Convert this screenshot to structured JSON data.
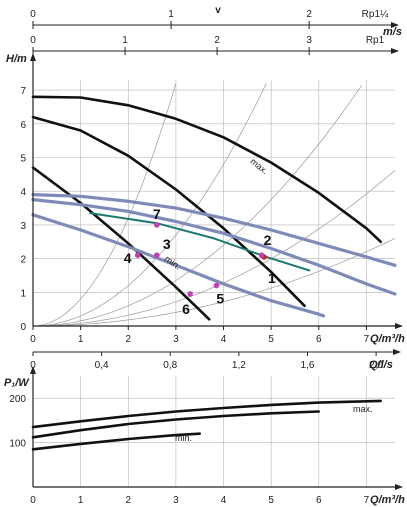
{
  "chart_data": [
    {
      "type": "line",
      "title": "",
      "scales": [
        {
          "label": "v",
          "unit": "m/s",
          "ticks": [
            "0",
            "1",
            "2"
          ],
          "values": [
            0,
            1,
            2
          ],
          "max": 2.6,
          "pipe": "Rp1¼"
        },
        {
          "label": "",
          "unit": "m/s",
          "ticks": [
            "0",
            "1",
            "2",
            "3"
          ],
          "values": [
            0,
            1,
            2,
            3
          ],
          "max": 3.9,
          "pipe": "Rp1"
        }
      ]
    },
    {
      "type": "line",
      "ylabel": "H/m",
      "xlabel": "Q/m³/h",
      "xlim": [
        0,
        7.6
      ],
      "ylim": [
        0,
        7.3
      ],
      "xticks": [
        "0",
        "1",
        "2",
        "3",
        "4",
        "5",
        "6",
        "7"
      ],
      "yticks": [
        "0",
        "1",
        "2",
        "3",
        "4",
        "5",
        "6",
        "7"
      ],
      "curve_labels": {
        "max": "max.",
        "min": "min."
      },
      "series": [
        {
          "id": "const-max",
          "x": [
            0,
            1,
            2,
            3,
            4,
            5,
            6,
            7,
            7.3
          ],
          "y": [
            6.8,
            6.78,
            6.55,
            6.15,
            5.6,
            4.85,
            3.95,
            2.9,
            2.5
          ],
          "color": "#111111"
        },
        {
          "id": "const-2",
          "x": [
            0,
            1,
            2,
            3,
            4,
            5,
            5.7
          ],
          "y": [
            6.2,
            5.8,
            5.05,
            4.05,
            2.9,
            1.6,
            0.6
          ],
          "color": "#111111"
        },
        {
          "id": "const-min",
          "x": [
            0,
            1,
            2,
            3,
            3.7
          ],
          "y": [
            4.7,
            3.65,
            2.45,
            1.15,
            0.2
          ],
          "color": "#111111"
        },
        {
          "id": "var-max",
          "x": [
            0,
            1,
            2,
            3,
            4,
            5,
            6,
            7,
            7.6
          ],
          "y": [
            3.9,
            3.85,
            3.7,
            3.5,
            3.2,
            2.85,
            2.45,
            2.05,
            1.8
          ],
          "color": "#7f8ab8"
        },
        {
          "id": "var-mid",
          "x": [
            0,
            1,
            2,
            3,
            4,
            5,
            6,
            7,
            7.6
          ],
          "y": [
            3.75,
            3.6,
            3.4,
            3.1,
            2.75,
            2.3,
            1.8,
            1.25,
            0.95
          ],
          "color": "#7f8ab8"
        },
        {
          "id": "var-min",
          "x": [
            0,
            1,
            2,
            3,
            4,
            5,
            6,
            6.1
          ],
          "y": [
            3.3,
            2.85,
            2.35,
            1.8,
            1.25,
            0.75,
            0.35,
            0.3
          ],
          "color": "#7f8ab8"
        },
        {
          "id": "setpoint",
          "x": [
            1.2,
            2.6,
            3.8,
            4.9,
            5.8
          ],
          "y": [
            3.35,
            3.05,
            2.6,
            2.05,
            1.65
          ],
          "color": "#1a7a6e"
        }
      ],
      "points": [
        {
          "label": "1",
          "x": 4.85,
          "y": 2.05
        },
        {
          "label": "2",
          "x": 4.8,
          "y": 2.1
        },
        {
          "label": "3",
          "x": 2.6,
          "y": 2.1
        },
        {
          "label": "4",
          "x": 2.2,
          "y": 2.1
        },
        {
          "label": "5",
          "x": 3.85,
          "y": 1.2
        },
        {
          "label": "6",
          "x": 3.3,
          "y": 0.95
        },
        {
          "label": "7",
          "x": 2.6,
          "y": 3.0
        }
      ],
      "colors": {
        "axis": "#222222",
        "grid": "#b5b5b5"
      }
    },
    {
      "type": "line",
      "xlabel": "Q/l/s",
      "ticks": [
        "0",
        "0,4",
        "0,8",
        "1,2",
        "1,6",
        "2,0"
      ],
      "values": [
        0,
        0.4,
        0.8,
        1.2,
        1.6,
        2.0
      ],
      "max": 2.11
    },
    {
      "type": "line",
      "ylabel": "P₁/W",
      "xlabel": "Q/m³/h",
      "xlim": [
        0,
        7.6
      ],
      "ylim": [
        0,
        250
      ],
      "xticks": [
        "0",
        "1",
        "2",
        "3",
        "4",
        "5",
        "6",
        "7"
      ],
      "yticks": [
        "100",
        "200"
      ],
      "curve_labels": {
        "max": "max.",
        "min": "min."
      },
      "series": [
        {
          "id": "power-max",
          "x": [
            0,
            1,
            2,
            3,
            4,
            5,
            6,
            7,
            7.3
          ],
          "y": [
            135,
            148,
            160,
            170,
            178,
            185,
            190,
            193,
            194
          ]
        },
        {
          "id": "power-2",
          "x": [
            0,
            1,
            2,
            3,
            4,
            5,
            6
          ],
          "y": [
            112,
            128,
            142,
            152,
            160,
            166,
            170
          ]
        },
        {
          "id": "power-min",
          "x": [
            0,
            1,
            2,
            3,
            3.5
          ],
          "y": [
            85,
            97,
            108,
            117,
            120
          ]
        }
      ]
    }
  ]
}
